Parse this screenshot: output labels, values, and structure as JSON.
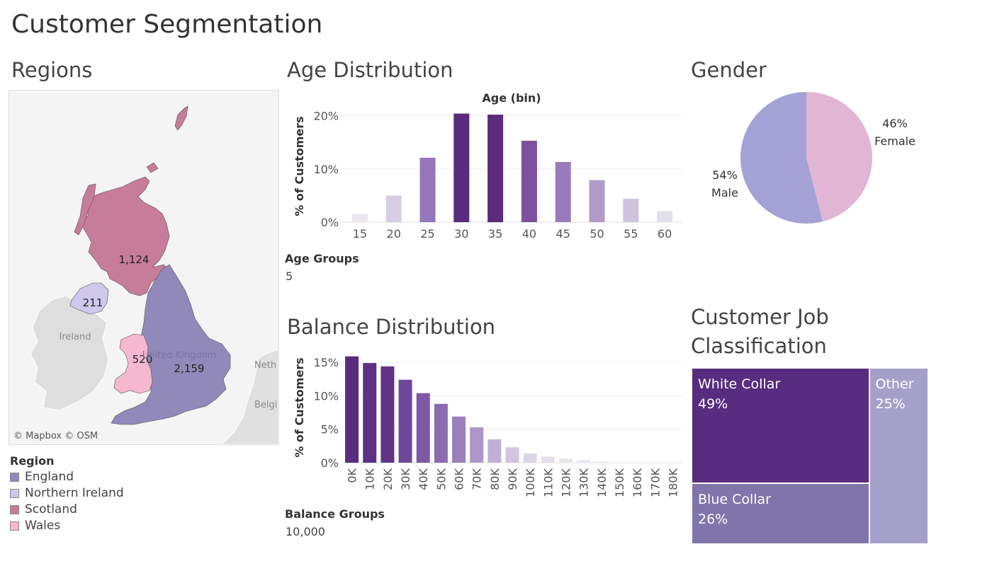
{
  "dashboard": {
    "title": "Customer Segmentation"
  },
  "colors": {
    "england": "#9189b9",
    "northern_ireland": "#cfc8ec",
    "scotland": "#c77c99",
    "wales": "#f5b8cf",
    "ireland": "#dedede",
    "europe": "#e0e0e0",
    "sea": "#f4f4f4"
  },
  "regions": {
    "title": "Regions",
    "map_credit": "© Mapbox © OSM",
    "labels": {
      "scotland": "1,124",
      "northern_ireland": "211",
      "wales": "520",
      "england": "2,159",
      "ireland": "Ireland",
      "uk": "United Kingdom",
      "netherlands": "Neth",
      "belgium": "Belgi"
    },
    "legend": {
      "title": "Region",
      "items": [
        {
          "label": "England",
          "color": "#9189b9"
        },
        {
          "label": "Northern Ireland",
          "color": "#cfc8ec"
        },
        {
          "label": "Scotland",
          "color": "#c77c99"
        },
        {
          "label": "Wales",
          "color": "#f5b8cf"
        }
      ]
    }
  },
  "age": {
    "title": "Age Distribution",
    "param": {
      "title": "Age Groups",
      "value": "5"
    }
  },
  "balance": {
    "title": "Balance Distribution",
    "param": {
      "title": "Balance Groups",
      "value": "10,000"
    }
  },
  "gender": {
    "title": "Gender"
  },
  "job": {
    "title_line1": "Customer Job",
    "title_line2": "Classification"
  },
  "chart_data": [
    {
      "id": "age",
      "type": "bar",
      "title": "Age (bin)",
      "xlabel": "Age (bin)",
      "ylabel": "% of Customers",
      "categories": [
        "15",
        "20",
        "25",
        "30",
        "35",
        "40",
        "45",
        "50",
        "55",
        "60"
      ],
      "values": [
        1.5,
        5,
        12.1,
        20.4,
        20.2,
        15.3,
        11.3,
        7.9,
        4.4,
        2.1
      ],
      "ylim": [
        0,
        21
      ],
      "yticks": [
        0,
        10,
        20
      ],
      "ytick_labels": [
        "0%",
        "10%",
        "20%"
      ],
      "colors": [
        "#ebe7f1",
        "#d8cde4",
        "#9476bb",
        "#5b2b7e",
        "#5b2b7e",
        "#7c509f",
        "#9a7cbc",
        "#b29bca",
        "#cfc2df",
        "#e4dfec"
      ],
      "grid": true
    },
    {
      "id": "balance",
      "type": "bar",
      "xlabel": "",
      "ylabel": "% of Customers",
      "categories": [
        "0K",
        "10K",
        "20K",
        "30K",
        "40K",
        "50K",
        "60K",
        "70K",
        "80K",
        "90K",
        "100K",
        "110K",
        "120K",
        "130K",
        "140K",
        "150K",
        "160K",
        "170K",
        "180K"
      ],
      "values": [
        15.9,
        14.9,
        14.4,
        12.4,
        10.4,
        8.8,
        6.9,
        5.3,
        3.5,
        2.3,
        1.4,
        0.9,
        0.6,
        0.4,
        0.2,
        0.1,
        0.05,
        0.03,
        0.02
      ],
      "ylim": [
        0,
        16.5
      ],
      "yticks": [
        0,
        5,
        10,
        15
      ],
      "ytick_labels": [
        "0%",
        "5%",
        "10%",
        "15%"
      ],
      "colors": [
        "#582c7e",
        "#5d3084",
        "#603387",
        "#70469a",
        "#7e58a4",
        "#8c6baf",
        "#9b80bc",
        "#ad96c7",
        "#c1b0d5",
        "#d1c5e0",
        "#ddd5e9",
        "#e5dfee",
        "#e9e4ef",
        "#ebe7f1",
        "#eeeaf3",
        "#f0edf4",
        "#f0edf4",
        "#f0edf4",
        "#f0edf4"
      ],
      "grid": true
    },
    {
      "id": "gender",
      "type": "pie",
      "categories": [
        "Female",
        "Male"
      ],
      "values": [
        46,
        54
      ],
      "value_labels": [
        "46%",
        "54%"
      ],
      "colors": [
        "#e0b6d4",
        "#a4a2d4"
      ]
    },
    {
      "id": "job",
      "type": "treemap",
      "categories": [
        "White Collar",
        "Other",
        "Blue Collar"
      ],
      "values": [
        49,
        25,
        26
      ],
      "value_labels": [
        "49%",
        "25%",
        "26%"
      ],
      "colors": [
        "#582c7e",
        "#a4a0ca",
        "#8075aa"
      ]
    }
  ]
}
